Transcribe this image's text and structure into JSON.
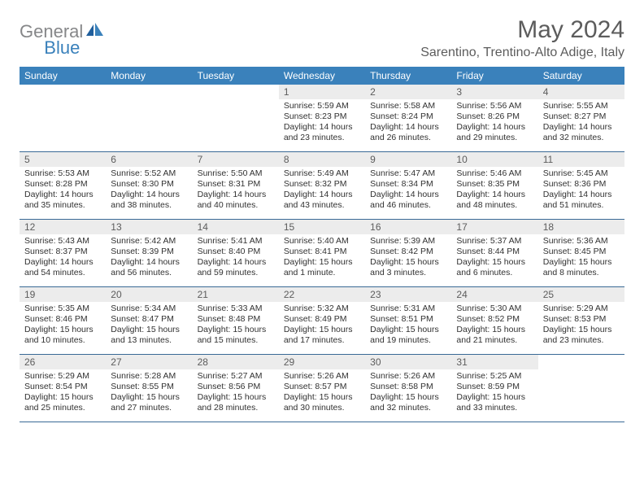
{
  "logo": {
    "word1": "General",
    "word2": "Blue"
  },
  "title": "May 2024",
  "location": "Sarentino, Trentino-Alto Adige, Italy",
  "day_names": [
    "Sunday",
    "Monday",
    "Tuesday",
    "Wednesday",
    "Thursday",
    "Friday",
    "Saturday"
  ],
  "colors": {
    "header_bg": "#3a81bb",
    "daynum_bg": "#ececec",
    "rule": "#3a6a96",
    "title_text": "#5c5c5c"
  },
  "weeks": [
    [
      {
        "n": "",
        "body": ""
      },
      {
        "n": "",
        "body": ""
      },
      {
        "n": "",
        "body": ""
      },
      {
        "n": "1",
        "body": "Sunrise: 5:59 AM\nSunset: 8:23 PM\nDaylight: 14 hours and 23 minutes."
      },
      {
        "n": "2",
        "body": "Sunrise: 5:58 AM\nSunset: 8:24 PM\nDaylight: 14 hours and 26 minutes."
      },
      {
        "n": "3",
        "body": "Sunrise: 5:56 AM\nSunset: 8:26 PM\nDaylight: 14 hours and 29 minutes."
      },
      {
        "n": "4",
        "body": "Sunrise: 5:55 AM\nSunset: 8:27 PM\nDaylight: 14 hours and 32 minutes."
      }
    ],
    [
      {
        "n": "5",
        "body": "Sunrise: 5:53 AM\nSunset: 8:28 PM\nDaylight: 14 hours and 35 minutes."
      },
      {
        "n": "6",
        "body": "Sunrise: 5:52 AM\nSunset: 8:30 PM\nDaylight: 14 hours and 38 minutes."
      },
      {
        "n": "7",
        "body": "Sunrise: 5:50 AM\nSunset: 8:31 PM\nDaylight: 14 hours and 40 minutes."
      },
      {
        "n": "8",
        "body": "Sunrise: 5:49 AM\nSunset: 8:32 PM\nDaylight: 14 hours and 43 minutes."
      },
      {
        "n": "9",
        "body": "Sunrise: 5:47 AM\nSunset: 8:34 PM\nDaylight: 14 hours and 46 minutes."
      },
      {
        "n": "10",
        "body": "Sunrise: 5:46 AM\nSunset: 8:35 PM\nDaylight: 14 hours and 48 minutes."
      },
      {
        "n": "11",
        "body": "Sunrise: 5:45 AM\nSunset: 8:36 PM\nDaylight: 14 hours and 51 minutes."
      }
    ],
    [
      {
        "n": "12",
        "body": "Sunrise: 5:43 AM\nSunset: 8:37 PM\nDaylight: 14 hours and 54 minutes."
      },
      {
        "n": "13",
        "body": "Sunrise: 5:42 AM\nSunset: 8:39 PM\nDaylight: 14 hours and 56 minutes."
      },
      {
        "n": "14",
        "body": "Sunrise: 5:41 AM\nSunset: 8:40 PM\nDaylight: 14 hours and 59 minutes."
      },
      {
        "n": "15",
        "body": "Sunrise: 5:40 AM\nSunset: 8:41 PM\nDaylight: 15 hours and 1 minute."
      },
      {
        "n": "16",
        "body": "Sunrise: 5:39 AM\nSunset: 8:42 PM\nDaylight: 15 hours and 3 minutes."
      },
      {
        "n": "17",
        "body": "Sunrise: 5:37 AM\nSunset: 8:44 PM\nDaylight: 15 hours and 6 minutes."
      },
      {
        "n": "18",
        "body": "Sunrise: 5:36 AM\nSunset: 8:45 PM\nDaylight: 15 hours and 8 minutes."
      }
    ],
    [
      {
        "n": "19",
        "body": "Sunrise: 5:35 AM\nSunset: 8:46 PM\nDaylight: 15 hours and 10 minutes."
      },
      {
        "n": "20",
        "body": "Sunrise: 5:34 AM\nSunset: 8:47 PM\nDaylight: 15 hours and 13 minutes."
      },
      {
        "n": "21",
        "body": "Sunrise: 5:33 AM\nSunset: 8:48 PM\nDaylight: 15 hours and 15 minutes."
      },
      {
        "n": "22",
        "body": "Sunrise: 5:32 AM\nSunset: 8:49 PM\nDaylight: 15 hours and 17 minutes."
      },
      {
        "n": "23",
        "body": "Sunrise: 5:31 AM\nSunset: 8:51 PM\nDaylight: 15 hours and 19 minutes."
      },
      {
        "n": "24",
        "body": "Sunrise: 5:30 AM\nSunset: 8:52 PM\nDaylight: 15 hours and 21 minutes."
      },
      {
        "n": "25",
        "body": "Sunrise: 5:29 AM\nSunset: 8:53 PM\nDaylight: 15 hours and 23 minutes."
      }
    ],
    [
      {
        "n": "26",
        "body": "Sunrise: 5:29 AM\nSunset: 8:54 PM\nDaylight: 15 hours and 25 minutes."
      },
      {
        "n": "27",
        "body": "Sunrise: 5:28 AM\nSunset: 8:55 PM\nDaylight: 15 hours and 27 minutes."
      },
      {
        "n": "28",
        "body": "Sunrise: 5:27 AM\nSunset: 8:56 PM\nDaylight: 15 hours and 28 minutes."
      },
      {
        "n": "29",
        "body": "Sunrise: 5:26 AM\nSunset: 8:57 PM\nDaylight: 15 hours and 30 minutes."
      },
      {
        "n": "30",
        "body": "Sunrise: 5:26 AM\nSunset: 8:58 PM\nDaylight: 15 hours and 32 minutes."
      },
      {
        "n": "31",
        "body": "Sunrise: 5:25 AM\nSunset: 8:59 PM\nDaylight: 15 hours and 33 minutes."
      },
      {
        "n": "",
        "body": ""
      }
    ]
  ]
}
